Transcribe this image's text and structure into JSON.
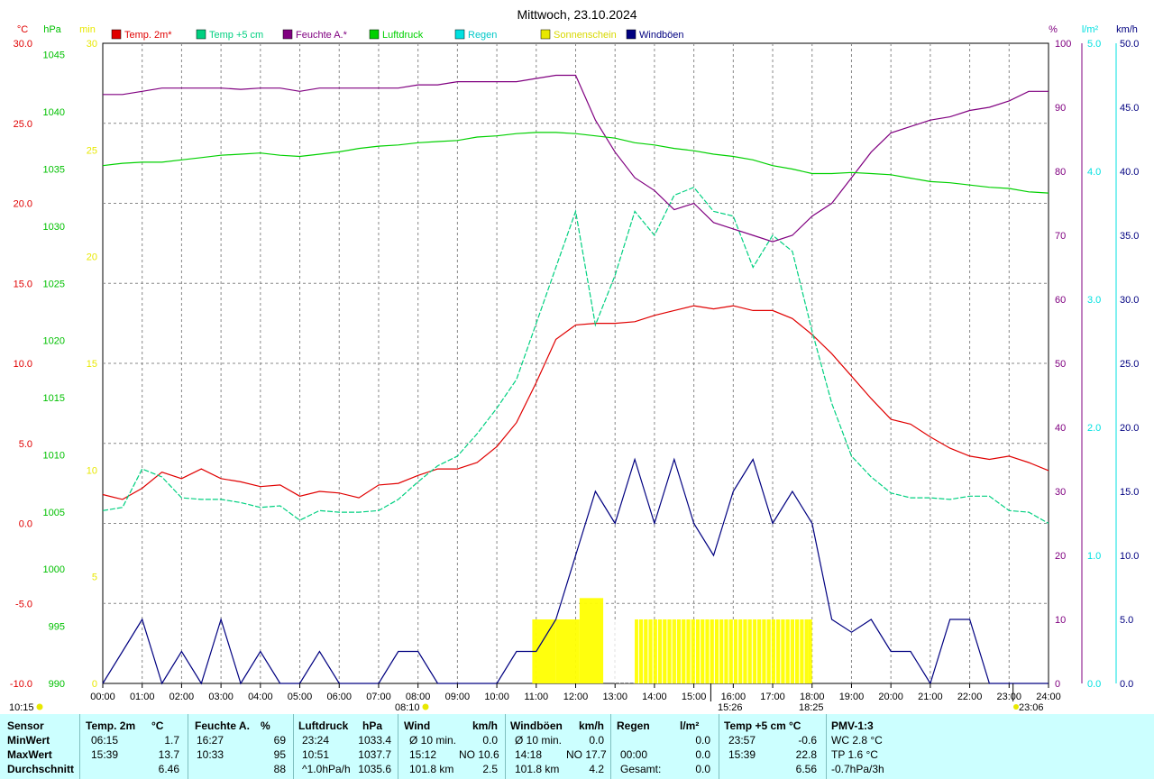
{
  "chart_data": {
    "type": "line",
    "title": "Mittwoch, 23.10.2024",
    "axes": {
      "temp_c": {
        "unit": "°C",
        "range": [
          -10,
          30
        ],
        "ticks": [
          "30.0",
          "25.0",
          "20.0",
          "15.0",
          "10.0",
          "5.0",
          "0.0",
          "-5.0",
          "-10.0"
        ],
        "color": "#e00000"
      },
      "pressure": {
        "unit": "hPa",
        "range": [
          990,
          1046
        ],
        "ticks": [
          "1045",
          "1040",
          "1035",
          "1030",
          "1025",
          "1020",
          "1015",
          "1010",
          "1005",
          "1000",
          "995",
          "990"
        ],
        "color": "#00c000"
      },
      "sunshine": {
        "unit": "min",
        "range": [
          0,
          30
        ],
        "ticks": [
          "30",
          "25",
          "20",
          "15",
          "10",
          "5",
          "0"
        ],
        "color": "#e8e800"
      },
      "humidity": {
        "unit": "%",
        "range": [
          0,
          100
        ],
        "ticks": [
          "100",
          "90",
          "80",
          "70",
          "60",
          "50",
          "40",
          "30",
          "20",
          "10",
          "0"
        ],
        "color": "#800080"
      },
      "rain": {
        "unit": "l/m²",
        "range": [
          0,
          5
        ],
        "ticks": [
          "5.0",
          "4.0",
          "3.0",
          "2.0",
          "1.0",
          "0.0"
        ],
        "color": "#00e0e0"
      },
      "wind": {
        "unit": "km/h",
        "range": [
          0,
          50
        ],
        "ticks": [
          "50.0",
          "45.0",
          "40.0",
          "35.0",
          "30.0",
          "25.0",
          "20.0",
          "15.0",
          "10.0",
          "5.0",
          "0.0"
        ],
        "color": "#000080"
      }
    },
    "x_ticks": [
      "00:00",
      "01:00",
      "02:00",
      "03:00",
      "04:00",
      "05:00",
      "06:00",
      "07:00",
      "08:00",
      "09:00",
      "10:00",
      "11:00",
      "12:00",
      "13:00",
      "14:00",
      "15:00",
      "16:00",
      "17:00",
      "18:00",
      "19:00",
      "20:00",
      "21:00",
      "22:00",
      "23:00",
      "24:00"
    ],
    "legend": [
      {
        "label": "Temp. 2m*",
        "color": "#e00000"
      },
      {
        "label": "Temp +5 cm",
        "color": "#00d080"
      },
      {
        "label": "Feuchte A.*",
        "color": "#800080"
      },
      {
        "label": "Luftdruck",
        "color": "#00d000"
      },
      {
        "label": "Regen",
        "color": "#00e0e0"
      },
      {
        "label": "Sonnenschein",
        "color": "#e8e800"
      },
      {
        "label": "Windböen",
        "color": "#000080"
      }
    ],
    "series": [
      {
        "name": "Temp. 2m*",
        "axis": "temp_c",
        "color": "#e00000",
        "x": [
          0,
          0.5,
          1,
          1.5,
          2,
          2.5,
          3,
          3.5,
          4,
          4.5,
          5,
          5.5,
          6,
          6.5,
          7,
          7.5,
          8,
          8.5,
          9,
          9.5,
          10,
          10.5,
          11,
          11.5,
          12,
          12.5,
          13,
          13.5,
          14,
          14.5,
          15,
          15.5,
          16,
          16.5,
          17,
          17.5,
          18,
          18.5,
          19,
          19.5,
          20,
          20.5,
          21,
          21.5,
          22,
          22.5,
          23,
          23.5,
          24
        ],
        "y": [
          1.8,
          1.5,
          2.2,
          3.2,
          2.8,
          3.4,
          2.8,
          2.6,
          2.3,
          2.4,
          1.7,
          2.0,
          1.9,
          1.6,
          2.4,
          2.5,
          3.0,
          3.4,
          3.4,
          3.8,
          4.8,
          6.3,
          8.8,
          11.5,
          12.4,
          12.5,
          12.5,
          12.6,
          13.0,
          13.3,
          13.6,
          13.4,
          13.6,
          13.3,
          13.3,
          12.8,
          11.8,
          10.6,
          9.2,
          7.8,
          6.5,
          6.2,
          5.4,
          4.7,
          4.2,
          4.0,
          4.2,
          3.8,
          3.3
        ]
      },
      {
        "name": "Temp +5 cm",
        "axis": "temp_c",
        "color": "#00d080",
        "x": [
          0,
          0.5,
          1,
          1.5,
          2,
          2.5,
          3,
          3.5,
          4,
          4.5,
          5,
          5.5,
          6,
          6.5,
          7,
          7.5,
          8,
          8.5,
          9,
          9.5,
          10,
          10.5,
          11,
          11.5,
          12,
          12.5,
          13,
          13.5,
          14,
          14.5,
          15,
          15.5,
          16,
          16.5,
          17,
          17.5,
          18,
          18.5,
          19,
          19.5,
          20,
          20.5,
          21,
          21.5,
          22,
          22.5,
          23,
          23.5,
          24
        ],
        "y": [
          0.8,
          1.0,
          3.4,
          2.9,
          1.6,
          1.5,
          1.5,
          1.3,
          1.0,
          1.1,
          0.2,
          0.8,
          0.7,
          0.7,
          0.8,
          1.5,
          2.6,
          3.6,
          4.2,
          5.6,
          7.2,
          9.0,
          12.5,
          16.0,
          19.5,
          12.4,
          15.5,
          19.5,
          18.0,
          20.5,
          21.0,
          19.5,
          19.2,
          16.0,
          18.0,
          17.0,
          12.0,
          7.5,
          4.2,
          2.9,
          1.9,
          1.6,
          1.6,
          1.5,
          1.7,
          1.7,
          0.8,
          0.7,
          0.0
        ]
      },
      {
        "name": "Feuchte A.*",
        "axis": "humidity",
        "color": "#800080",
        "x": [
          0,
          0.5,
          1,
          1.5,
          2,
          2.5,
          3,
          3.5,
          4,
          4.5,
          5,
          5.5,
          6,
          6.5,
          7,
          7.5,
          8,
          8.5,
          9,
          9.5,
          10,
          10.5,
          11,
          11.5,
          12,
          12.5,
          13,
          13.5,
          14,
          14.5,
          15,
          15.5,
          16,
          16.5,
          17,
          17.5,
          18,
          18.5,
          19,
          19.5,
          20,
          20.5,
          21,
          21.5,
          22,
          22.5,
          23,
          23.5,
          24
        ],
        "y": [
          92,
          92,
          92.5,
          93,
          93,
          93,
          93,
          92.8,
          93,
          93,
          92.5,
          93,
          93,
          93,
          93,
          93,
          93.5,
          93.5,
          94,
          94,
          94,
          94,
          94.5,
          95,
          95,
          88,
          83,
          79,
          77,
          74,
          75,
          72,
          71,
          70,
          69,
          70,
          73,
          75,
          79,
          83,
          86,
          87,
          88,
          88.5,
          89.5,
          90,
          91,
          92.5,
          92.5
        ]
      },
      {
        "name": "Luftdruck",
        "axis": "pressure",
        "color": "#00d000",
        "x": [
          0,
          0.5,
          1,
          1.5,
          2,
          2.5,
          3,
          3.5,
          4,
          4.5,
          5,
          5.5,
          6,
          6.5,
          7,
          7.5,
          8,
          8.5,
          9,
          9.5,
          10,
          10.5,
          11,
          11.5,
          12,
          12.5,
          13,
          13.5,
          14,
          14.5,
          15,
          15.5,
          16,
          16.5,
          17,
          17.5,
          18,
          18.5,
          19,
          19.5,
          20,
          20.5,
          21,
          21.5,
          22,
          22.5,
          23,
          23.5,
          24
        ],
        "y": [
          1035.3,
          1035.5,
          1035.6,
          1035.6,
          1035.8,
          1036.0,
          1036.2,
          1036.3,
          1036.4,
          1036.2,
          1036.1,
          1036.3,
          1036.5,
          1036.8,
          1037.0,
          1037.1,
          1037.3,
          1037.4,
          1037.5,
          1037.8,
          1037.9,
          1038.1,
          1038.2,
          1038.2,
          1038.1,
          1037.9,
          1037.7,
          1037.3,
          1037.1,
          1036.8,
          1036.6,
          1036.3,
          1036.1,
          1035.8,
          1035.3,
          1035.0,
          1034.6,
          1034.6,
          1034.7,
          1034.6,
          1034.5,
          1034.2,
          1033.9,
          1033.8,
          1033.6,
          1033.4,
          1033.3,
          1033.0,
          1032.9
        ]
      },
      {
        "name": "Windböen",
        "axis": "wind",
        "color": "#000080",
        "x": [
          0,
          0.5,
          1,
          1.5,
          2,
          2.5,
          3,
          3.5,
          4,
          4.5,
          5,
          5.5,
          6,
          6.5,
          7,
          7.5,
          8,
          8.5,
          9,
          9.5,
          10,
          10.5,
          11,
          11.5,
          12,
          12.5,
          13,
          13.5,
          14,
          14.5,
          15,
          15.5,
          16,
          16.5,
          17,
          17.5,
          18,
          18.5,
          19,
          19.5,
          20,
          20.5,
          21,
          21.5,
          22,
          22.5,
          23,
          23.5,
          24
        ],
        "y": [
          0,
          2.5,
          5,
          0,
          2.5,
          0,
          5,
          0,
          2.5,
          0,
          0,
          2.5,
          0,
          0,
          0,
          2.5,
          2.5,
          0,
          0,
          0,
          0,
          2.5,
          2.5,
          5,
          10,
          15,
          12.5,
          17.5,
          12.5,
          17.5,
          12.5,
          10,
          15,
          17.5,
          12.5,
          15,
          12.5,
          5,
          4,
          5,
          2.5,
          2.5,
          0,
          5,
          5,
          0,
          0,
          0,
          0
        ]
      },
      {
        "name": "Sonnenschein",
        "axis": "sunshine",
        "color": "#e8e800",
        "x": [
          0,
          10.8,
          10.9,
          11.5,
          12.0,
          12.1,
          12.7,
          13.5,
          14.5,
          15.5,
          16.5,
          17.5,
          17.9,
          18.0,
          24
        ],
        "y": [
          0,
          0,
          3,
          3,
          3,
          4,
          0,
          3,
          3,
          3,
          3,
          3,
          3,
          0,
          0
        ]
      }
    ],
    "markers": {
      "sunrise": "08:10",
      "sunset": "18:25",
      "max_time": "15:26",
      "night_start": "10:15",
      "night_end": "23:06"
    }
  },
  "stats": {
    "headers": [
      {
        "name": "Sensor",
        "unit": ""
      },
      {
        "name": "Temp. 2m",
        "unit": "°C"
      },
      {
        "name": "Feuchte A.",
        "unit": "%"
      },
      {
        "name": "Luftdruck",
        "unit": "hPa"
      },
      {
        "name": "Wind",
        "unit": "km/h"
      },
      {
        "name": "Windböen",
        "unit": "km/h"
      },
      {
        "name": "Regen",
        "unit": "l/m²"
      },
      {
        "name": "Temp +5 cm",
        "unit": "°C"
      },
      {
        "name": "PMV-1:3",
        "unit": ""
      }
    ],
    "row_labels": [
      "MinWert",
      "MaxWert",
      "Durchschnitt"
    ],
    "temp2m": [
      [
        "06:15",
        "1.7"
      ],
      [
        "15:39",
        "13.7"
      ],
      [
        "",
        "6.46"
      ]
    ],
    "humidity": [
      [
        "16:27",
        "69"
      ],
      [
        "10:33",
        "95"
      ],
      [
        "",
        "88"
      ]
    ],
    "pressure": [
      [
        "23:24",
        "1033.4"
      ],
      [
        "10:51",
        "1037.7"
      ],
      [
        "^1.0hPa/h",
        "1035.6"
      ]
    ],
    "wind": [
      [
        "Ø 10 min.",
        "",
        "0.0"
      ],
      [
        "15:12",
        "NO 10.6",
        ""
      ],
      [
        "101.8 km",
        "",
        "2.5"
      ]
    ],
    "gusts": [
      [
        "Ø 10 min.",
        "",
        "0.0"
      ],
      [
        "14:18",
        "NO 17.7",
        ""
      ],
      [
        "101.8 km",
        "",
        "4.2"
      ]
    ],
    "rain": [
      [
        "",
        "0.0"
      ],
      [
        "00:00",
        "0.0"
      ],
      [
        "Gesamt:",
        "0.0"
      ]
    ],
    "temp5cm": [
      [
        "23:57",
        "-0.6"
      ],
      [
        "15:39",
        "22.8"
      ],
      [
        "",
        "6.56"
      ]
    ],
    "pmv": [
      "WC 2.8 °C",
      "TP 1.6 °C",
      "-0.7hPa/3h"
    ]
  }
}
